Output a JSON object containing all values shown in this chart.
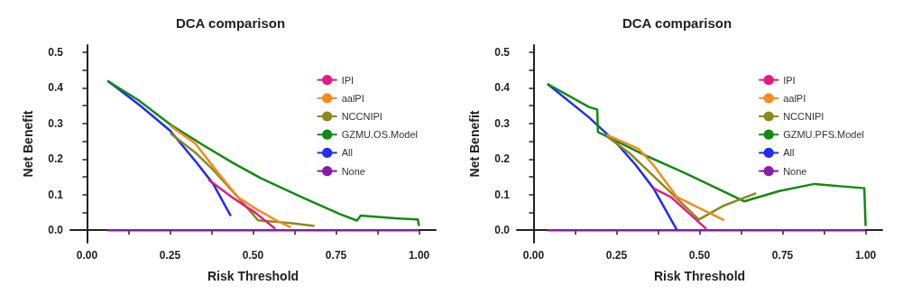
{
  "chart_data": [
    {
      "type": "line",
      "title": "DCA comparison",
      "xlabel": "Risk Threshold",
      "ylabel": "Net Benefit",
      "xlim": [
        -0.05,
        1.05
      ],
      "ylim": [
        -0.035,
        0.52
      ],
      "xticks": [
        {
          "value": 0,
          "label": "0.00"
        },
        {
          "value": 0.125,
          "label": null
        },
        {
          "value": 0.25,
          "label": "0.25"
        },
        {
          "value": 0.375,
          "label": null
        },
        {
          "value": 0.5,
          "label": "0.50"
        },
        {
          "value": 0.625,
          "label": null
        },
        {
          "value": 0.75,
          "label": "0.75"
        },
        {
          "value": 0.875,
          "label": null
        },
        {
          "value": 1,
          "label": "1.00"
        }
      ],
      "yticks": [
        {
          "value": 0,
          "label": "0.0"
        },
        {
          "value": 0.05,
          "label": null
        },
        {
          "value": 0.1,
          "label": "0.1"
        },
        {
          "value": 0.15,
          "label": null
        },
        {
          "value": 0.2,
          "label": "0.2"
        },
        {
          "value": 0.25,
          "label": null
        },
        {
          "value": 0.3,
          "label": "0.3"
        },
        {
          "value": 0.35,
          "label": null
        },
        {
          "value": 0.4,
          "label": "0.4"
        },
        {
          "value": 0.45,
          "label": null
        },
        {
          "value": 0.5,
          "label": "0.5"
        }
      ],
      "grid": false,
      "legend": "top right",
      "series": [
        {
          "name": "IPI",
          "color": "#e6197e",
          "x": [
            0.366,
            0.436,
            0.507,
            0.567
          ],
          "values": [
            0.142,
            0.093,
            0.049,
            0.004
          ]
        },
        {
          "name": "aalPI",
          "color": "#f58a1f",
          "x": [
            0.251,
            0.326,
            0.383,
            0.454,
            0.507,
            0.577,
            0.614
          ],
          "values": [
            0.293,
            0.244,
            0.175,
            0.093,
            0.061,
            0.024,
            0.008
          ]
        },
        {
          "name": "NCCNIPI",
          "color": "#8a8a1e",
          "x": [
            0.251,
            0.33,
            0.383,
            0.454,
            0.515,
            0.612,
            0.685
          ],
          "values": [
            0.272,
            0.215,
            0.167,
            0.093,
            0.028,
            0.02,
            0.012
          ]
        },
        {
          "name": "GZMU.OS.Model",
          "color": "#128a12",
          "x": [
            0.062,
            0.154,
            0.251,
            0.348,
            0.436,
            0.524,
            0.656,
            0.762,
            0.813,
            0.824,
            0.938,
            0.996,
            1.0
          ],
          "values": [
            0.419,
            0.366,
            0.297,
            0.24,
            0.191,
            0.146,
            0.089,
            0.045,
            0.027,
            0.041,
            0.033,
            0.03,
            0.012
          ]
        },
        {
          "name": "All",
          "color": "#1f2ef0",
          "x": [
            0.062,
            0.16,
            0.25,
            0.33,
            0.38,
            0.433
          ],
          "values": [
            0.42,
            0.35,
            0.28,
            0.19,
            0.13,
            0.04
          ]
        },
        {
          "name": "None",
          "color": "#8a1aa8",
          "x": [
            0.062,
            1.0
          ],
          "values": [
            0,
            0
          ]
        }
      ]
    },
    {
      "type": "line",
      "title": "DCA comparison",
      "xlabel": "Risk Threshold",
      "ylabel": "Net Benefit",
      "xlim": [
        -0.05,
        1.05
      ],
      "ylim": [
        -0.035,
        0.52
      ],
      "xticks": [
        {
          "value": 0,
          "label": "0.00"
        },
        {
          "value": 0.125,
          "label": null
        },
        {
          "value": 0.25,
          "label": "0.25"
        },
        {
          "value": 0.375,
          "label": null
        },
        {
          "value": 0.5,
          "label": "0.50"
        },
        {
          "value": 0.625,
          "label": null
        },
        {
          "value": 0.75,
          "label": "0.75"
        },
        {
          "value": 0.875,
          "label": null
        },
        {
          "value": 1,
          "label": "1.00"
        }
      ],
      "yticks": [
        {
          "value": 0,
          "label": "0.0"
        },
        {
          "value": 0.05,
          "label": null
        },
        {
          "value": 0.1,
          "label": "0.1"
        },
        {
          "value": 0.15,
          "label": null
        },
        {
          "value": 0.2,
          "label": "0.2"
        },
        {
          "value": 0.25,
          "label": null
        },
        {
          "value": 0.3,
          "label": "0.3"
        },
        {
          "value": 0.35,
          "label": null
        },
        {
          "value": 0.4,
          "label": "0.4"
        },
        {
          "value": 0.45,
          "label": null
        },
        {
          "value": 0.5,
          "label": "0.5"
        }
      ],
      "grid": false,
      "legend": "top right",
      "series": [
        {
          "name": "IPI",
          "color": "#e6197e",
          "x": [
            0.361,
            0.414,
            0.52
          ],
          "values": [
            0.118,
            0.093,
            0.004
          ]
        },
        {
          "name": "aalPI",
          "color": "#f58a1f",
          "x": [
            0.22,
            0.317,
            0.361,
            0.432,
            0.502,
            0.574
          ],
          "values": [
            0.268,
            0.228,
            0.183,
            0.093,
            0.061,
            0.028
          ]
        },
        {
          "name": "NCCNIPI",
          "color": "#8a8a1e",
          "x": [
            0.22,
            0.291,
            0.498,
            0.573,
            0.67
          ],
          "values": [
            0.264,
            0.215,
            0.03,
            0.069,
            0.104
          ]
        },
        {
          "name": "GZMU.PFS.Model",
          "color": "#128a12",
          "x": [
            0.042,
            0.167,
            0.192,
            0.194,
            0.247,
            0.344,
            0.441,
            0.634,
            0.74,
            0.846,
            0.996,
            1.0
          ],
          "values": [
            0.411,
            0.346,
            0.339,
            0.276,
            0.252,
            0.207,
            0.167,
            0.081,
            0.11,
            0.13,
            0.118,
            0.012
          ]
        },
        {
          "name": "All",
          "color": "#1f2ef0",
          "x": [
            0.042,
            0.167,
            0.247,
            0.308,
            0.361,
            0.432
          ],
          "values": [
            0.411,
            0.317,
            0.248,
            0.183,
            0.118,
            0.0
          ]
        },
        {
          "name": "None",
          "color": "#8a1aa8",
          "x": [
            0.042,
            1.0
          ],
          "values": [
            0,
            0
          ]
        }
      ]
    }
  ]
}
